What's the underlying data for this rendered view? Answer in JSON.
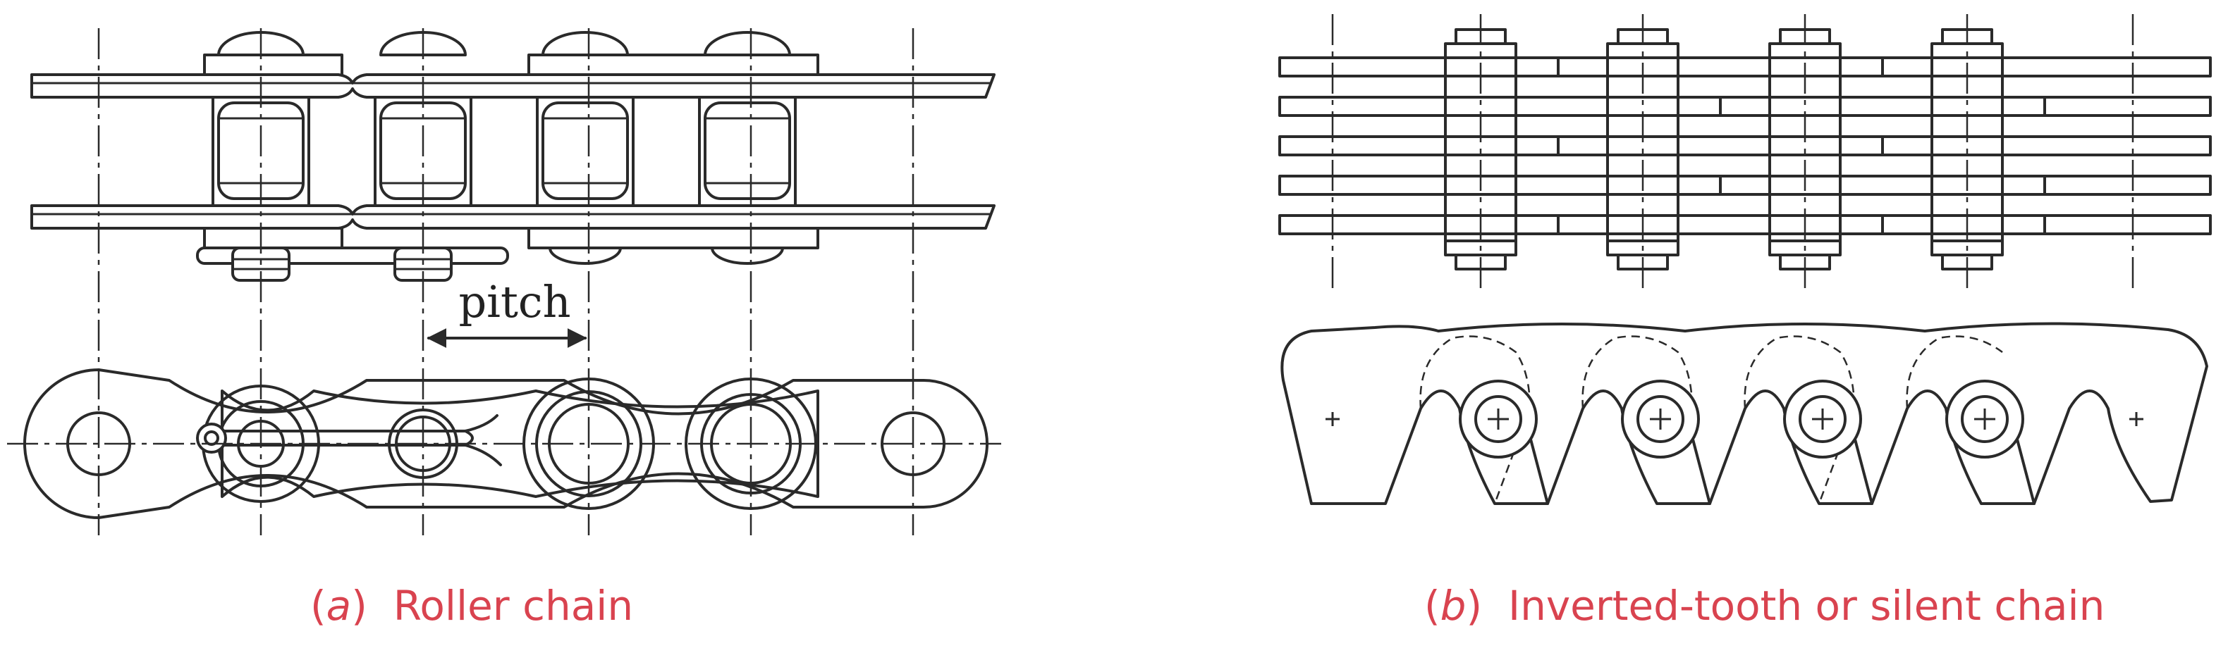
{
  "diagram": {
    "dimension_label": "pitch",
    "colors": {
      "line": "#2a2a2a",
      "caption": "#d9434f",
      "background": "#ffffff"
    },
    "panels": [
      {
        "paren_open": "(",
        "letter": "a",
        "paren_close": ")",
        "caption": "Roller chain"
      },
      {
        "paren_open": "(",
        "letter": "b",
        "paren_close": ")",
        "caption": "Inverted-tooth or silent chain"
      }
    ]
  }
}
